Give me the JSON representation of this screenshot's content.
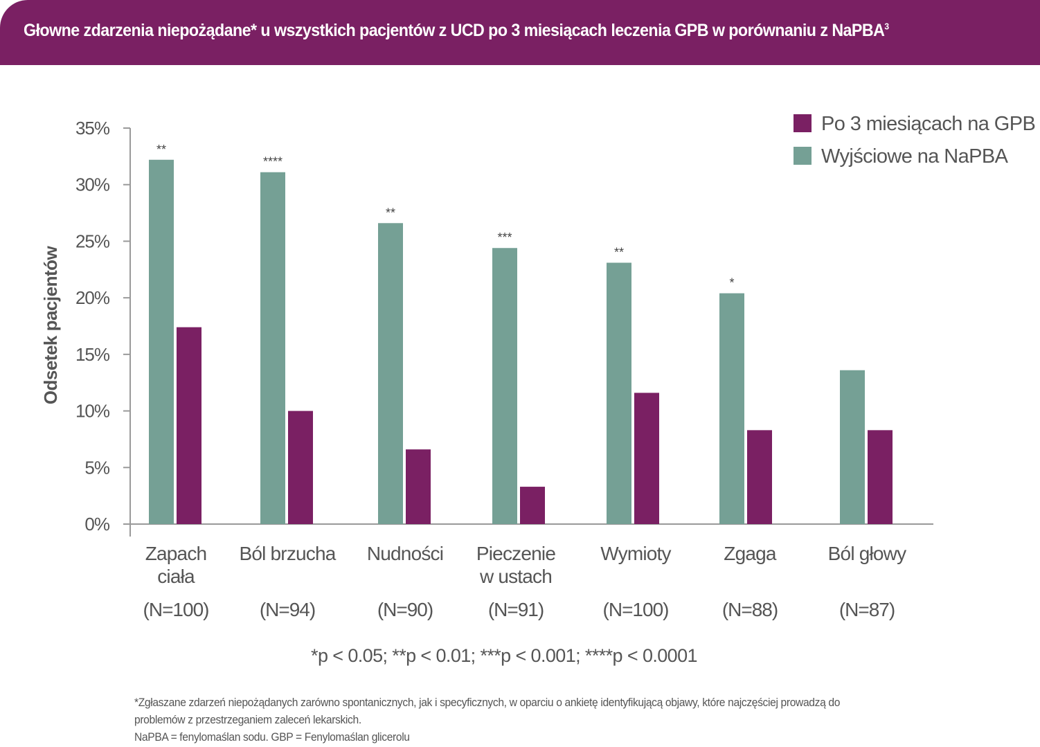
{
  "title": {
    "text": "Głowne zdarzenia niepożądane* u wszystkich pacjentów z UCD po 3 miesiącach leczenia GPB w porównaniu z NaPBA",
    "sup": "3"
  },
  "chart_data": {
    "type": "bar",
    "ylabel": "Odsetek pacjentów",
    "ylim": [
      0,
      35
    ],
    "yticks": [
      "0%",
      "5%",
      "10%",
      "15%",
      "20%",
      "25%",
      "30%",
      "35%"
    ],
    "ytick_values": [
      0,
      5,
      10,
      15,
      20,
      25,
      30,
      35
    ],
    "categories": [
      {
        "lines": [
          "Zapach",
          "ciała"
        ],
        "n": "(N=100)"
      },
      {
        "lines": [
          "Ból brzucha"
        ],
        "n": "(N=94)"
      },
      {
        "lines": [
          "Nudności"
        ],
        "n": "(N=90)"
      },
      {
        "lines": [
          "Pieczenie",
          "w ustach"
        ],
        "n": "(N=91)"
      },
      {
        "lines": [
          "Wymioty"
        ],
        "n": "(N=100)"
      },
      {
        "lines": [
          "Zgaga"
        ],
        "n": "(N=88)"
      },
      {
        "lines": [
          "Ból głowy"
        ],
        "n": "(N=87)"
      }
    ],
    "series": [
      {
        "name": "Wyjściowe na NaPBA",
        "color": "#75a095",
        "values": [
          32.2,
          31.1,
          26.6,
          24.4,
          23.1,
          20.4,
          13.6
        ]
      },
      {
        "name": "Po 3 miesiącach na GPB",
        "color": "#7a2063",
        "values": [
          17.4,
          10.0,
          6.6,
          3.3,
          11.6,
          8.3,
          8.3
        ]
      }
    ],
    "significance": [
      "**",
      "****",
      "**",
      "***",
      "**",
      "*",
      ""
    ],
    "legend": {
      "placement": "top-right",
      "entries": [
        "Po 3 miesiącach na GPB",
        "Wyjściowe na NaPBA"
      ]
    },
    "pvalue_note": "*p < 0.05; **p < 0.01; ***p < 0.001; ****p < 0.0001"
  },
  "footnote": {
    "line1": "*Zgłaszane zdarzeń niepożądanych zarówno spontanicznych, jak i specyficznych, w oparciu o ankietę identyfikującą objawy, które najczęściej prowadzą do",
    "line2": "problemów z przestrzeganiem zaleceń lekarskich.",
    "line3": "NaPBA = fenylomaślan sodu. GBP = Fenylomaślan glicerolu"
  }
}
